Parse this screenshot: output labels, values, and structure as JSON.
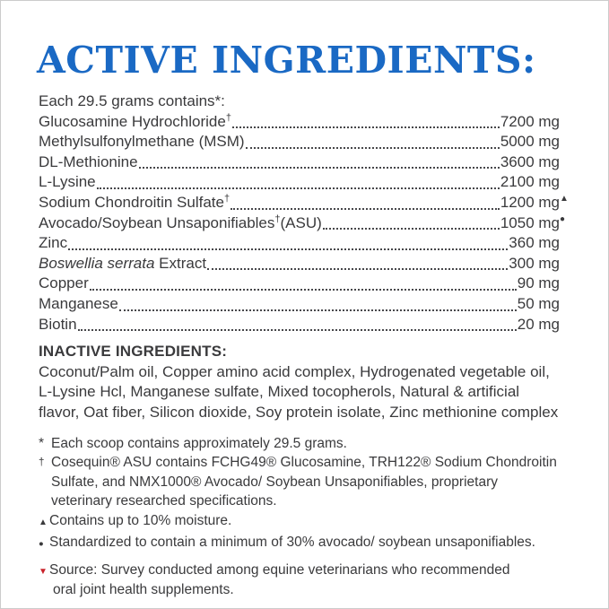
{
  "colors": {
    "title_blue": "#1a69c4",
    "body_text": "#3a3a3c",
    "source_marker_red": "#c9222a"
  },
  "header": {
    "title": "ACTIVE INGREDIENTS:"
  },
  "active": {
    "serving_line": "Each 29.5 grams contains*:",
    "rows": [
      {
        "italic": "",
        "name": "Glucosamine Hydrochloride",
        "dagger": "†",
        "suffix": "",
        "value": "7200 mg",
        "marker": ""
      },
      {
        "italic": "",
        "name": "Methylsulfonylmethane (MSM)",
        "dagger": "",
        "suffix": "",
        "value": "5000 mg",
        "marker": ""
      },
      {
        "italic": "",
        "name": "DL-Methionine",
        "dagger": "",
        "suffix": "",
        "value": "3600 mg",
        "marker": ""
      },
      {
        "italic": "",
        "name": "L-Lysine",
        "dagger": "",
        "suffix": "",
        "value": "2100 mg",
        "marker": ""
      },
      {
        "italic": "",
        "name": "Sodium Chondroitin Sulfate",
        "dagger": "†",
        "suffix": "",
        "value": "1200 mg",
        "marker": "▲"
      },
      {
        "italic": "",
        "name": "Avocado/Soybean Unsaponifiables",
        "dagger": "†",
        "suffix": "(ASU)",
        "value": "1050 mg",
        "marker": "●"
      },
      {
        "italic": "",
        "name": "Zinc",
        "dagger": "",
        "suffix": "",
        "value": "360 mg",
        "marker": ""
      },
      {
        "italic": "Boswellia serrata",
        "name": " Extract",
        "dagger": "",
        "suffix": "",
        "value": "300 mg",
        "marker": ""
      },
      {
        "italic": "",
        "name": "Copper",
        "dagger": "",
        "suffix": "",
        "value": "90 mg",
        "marker": ""
      },
      {
        "italic": "",
        "name": "Manganese",
        "dagger": "",
        "suffix": "",
        "value": "50 mg",
        "marker": ""
      },
      {
        "italic": "",
        "name": "Biotin",
        "dagger": "",
        "suffix": "",
        "value": "20 mg",
        "marker": ""
      }
    ]
  },
  "inactive": {
    "heading": "INACTIVE INGREDIENTS:",
    "lines": [
      "Coconut/Palm oil, Copper amino acid complex, Hydrogenated vegetable oil,",
      "L-Lysine Hcl, Manganese sulfate, Mixed tocopherols, Natural & artificial",
      "flavor, Oat fiber, Silicon dioxide, Soy protein isolate, Zinc methionine complex"
    ]
  },
  "footnotes": [
    {
      "marker": "*",
      "lines": [
        "Each scoop contains approximately 29.5 grams."
      ]
    },
    {
      "marker": "†",
      "lines": [
        "Cosequin® ASU contains FCHG49® Glucosamine, TRH122® Sodium Chondroitin",
        "Sulfate, and NMX1000® Avocado/ Soybean Unsaponifiables, proprietary",
        "veterinary researched specifications."
      ]
    },
    {
      "marker": "▲",
      "lines": [
        "Contains up to 10% moisture."
      ]
    },
    {
      "marker": "●",
      "lines": [
        "Standardized to contain a minimum of 30% avocado/ soybean unsaponifiables."
      ]
    },
    {
      "marker": "▼",
      "lines": [
        "Source: Survey conducted among equine veterinarians who recommended",
        "oral joint health supplements."
      ]
    }
  ]
}
